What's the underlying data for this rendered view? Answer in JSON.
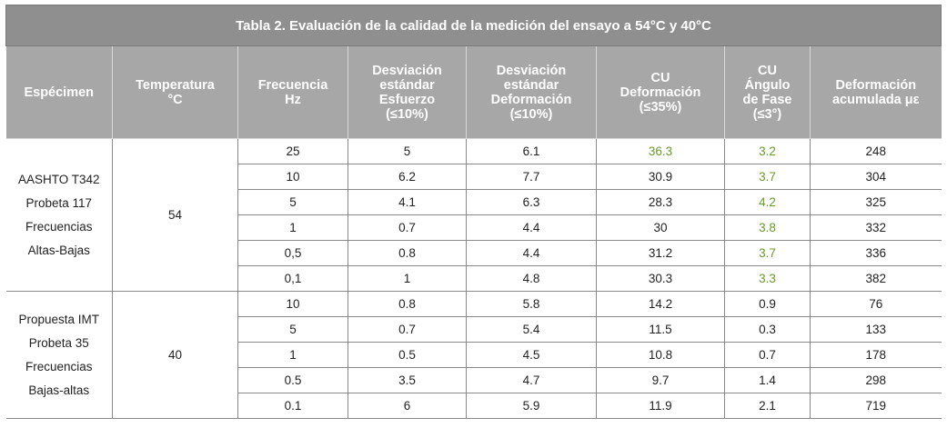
{
  "title": "Tabla 2. Evaluación de la calidad de la medición del ensayo a 54°C y 40°C",
  "headers": [
    "Espécimen",
    "Temperatura\n°C",
    "Frecuencia\nHz",
    "Desviación\nestándar\nEsfuerzo\n(≤10%)",
    "Desviación\nestándar\nDeformación\n(≤10%)",
    "CU\nDeformación\n(≤35%)",
    "CU\nÁngulo\nde Fase\n(≤3°)",
    "Deformación\nacumulada με"
  ],
  "groups": [
    {
      "specimen_lines": [
        "AASHTO T342",
        "Probeta 117",
        "Frecuencias",
        "Altas-Bajas"
      ],
      "temperature": "54",
      "rows": [
        {
          "freq": "25",
          "sd_stress": "5",
          "sd_strain": "6.1",
          "cu_strain": "36.3",
          "cu_phase": "3.2",
          "acc": "248"
        },
        {
          "freq": "10",
          "sd_stress": "6.2",
          "sd_strain": "7.7",
          "cu_strain": "30.9",
          "cu_phase": "3.7",
          "acc": "304"
        },
        {
          "freq": "5",
          "sd_stress": "4.1",
          "sd_strain": "6.3",
          "cu_strain": "28.3",
          "cu_phase": "4.2",
          "acc": "325"
        },
        {
          "freq": "1",
          "sd_stress": "0.7",
          "sd_strain": "4.4",
          "cu_strain": "30",
          "cu_phase": "3.8",
          "acc": "332"
        },
        {
          "freq": "0,5",
          "sd_stress": "0.8",
          "sd_strain": "4.4",
          "cu_strain": "31.2",
          "cu_phase": "3.7",
          "acc": "336"
        },
        {
          "freq": "0,1",
          "sd_stress": "1",
          "sd_strain": "4.8",
          "cu_strain": "30.3",
          "cu_phase": "3.3",
          "acc": "382"
        }
      ]
    },
    {
      "specimen_lines": [
        "Propuesta IMT",
        "Probeta 35",
        "Frecuencias",
        "Bajas-altas"
      ],
      "temperature": "40",
      "rows": [
        {
          "freq": "10",
          "sd_stress": "0.8",
          "sd_strain": "5.8",
          "cu_strain": "14.2",
          "cu_phase": "0.9",
          "acc": "76"
        },
        {
          "freq": "5",
          "sd_stress": "0.7",
          "sd_strain": "5.4",
          "cu_strain": "11.5",
          "cu_phase": "0.3",
          "acc": "133"
        },
        {
          "freq": "1",
          "sd_stress": "0.5",
          "sd_strain": "4.5",
          "cu_strain": "10.8",
          "cu_phase": "0.7",
          "acc": "178"
        },
        {
          "freq": "0.5",
          "sd_stress": "3.5",
          "sd_strain": "4.7",
          "cu_strain": "9.7",
          "cu_phase": "1.4",
          "acc": "298"
        },
        {
          "freq": "0.1",
          "sd_stress": "6",
          "sd_strain": "5.9",
          "cu_strain": "11.9",
          "cu_phase": "2.1",
          "acc": "719"
        }
      ]
    }
  ],
  "highlight_color": "#6a9a2a"
}
